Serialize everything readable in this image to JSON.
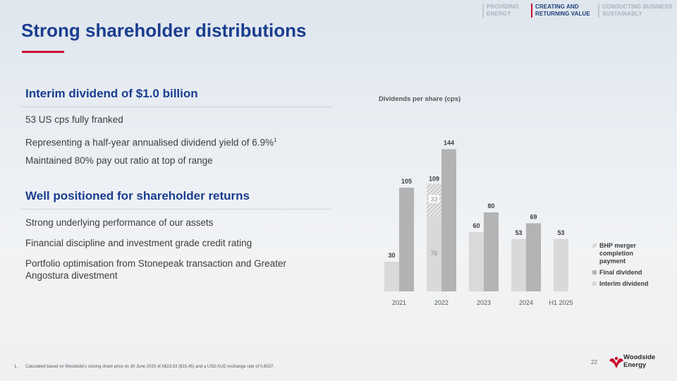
{
  "nav": [
    {
      "label_line1": "PROVIDING",
      "label_line2": "ENERGY",
      "active": false
    },
    {
      "label_line1": "CREATING AND",
      "label_line2": "RETURNING VALUE",
      "active": true
    },
    {
      "label_line1": "CONDUCTING BUSINESS",
      "label_line2": "SUSTAINABLY",
      "active": false
    }
  ],
  "title": "Strong shareholder distributions",
  "sections": [
    {
      "heading": "Interim dividend of $1.0 billion",
      "points": [
        "53 US cps fully franked",
        "Representing a half-year annualised dividend yield of 6.9%",
        "Maintained 80% pay out ratio at top of range"
      ],
      "point_2_footnote_ref": "1"
    },
    {
      "heading": "Well positioned for shareholder returns",
      "points": [
        "Strong underlying performance of our assets",
        "Financial discipline and investment grade credit rating",
        "Portfolio optimisation from Stonepeak transaction and Greater Angostura divestment"
      ]
    }
  ],
  "chart_data": {
    "type": "bar",
    "title": "Dividends per share (cps)",
    "categories": [
      "2021",
      "2022",
      "2023",
      "2024",
      "H1 2025"
    ],
    "stacked_group": {
      "category": "2022",
      "segments": [
        {
          "name": "Interim dividend",
          "value": 76
        },
        {
          "name": "BHP merger completion payment",
          "value": 33
        }
      ],
      "total": 109
    },
    "series": [
      {
        "name": "Interim dividend",
        "values": [
          30,
          76,
          60,
          53,
          53
        ]
      },
      {
        "name": "Final dividend",
        "values": [
          105,
          144,
          80,
          69,
          null
        ]
      },
      {
        "name": "BHP merger completion payment",
        "values": [
          null,
          33,
          null,
          null,
          null
        ]
      }
    ],
    "bar_labels": {
      "interim": [
        "30",
        "76",
        "60",
        "53",
        "53"
      ],
      "final": [
        "105",
        "144",
        "80",
        "69",
        ""
      ],
      "stack_top": "109",
      "bhp": "33"
    },
    "legend": [
      {
        "name": "BHP merger completion payment",
        "lines": [
          "BHP merger",
          "completion",
          "payment"
        ]
      },
      {
        "name": "Final dividend",
        "lines": [
          "Final dividend"
        ]
      },
      {
        "name": "Interim dividend",
        "lines": [
          "Interim dividend"
        ]
      }
    ],
    "colors": {
      "interim": "#d9d9d9",
      "final": "#b3b3b3",
      "bhp": "#bdbdbd"
    },
    "ylim": [
      0,
      160
    ]
  },
  "footnote": {
    "number": "1.",
    "text": "Calculated based on Woodside's closing share price on 30 June 2025 of A$23.63 ($15.45) and a USD:AUD exchange rate of 0.6537."
  },
  "page_number": "22",
  "brand": {
    "line1": "Woodside",
    "line2": "Energy",
    "color": "#c8102e"
  }
}
